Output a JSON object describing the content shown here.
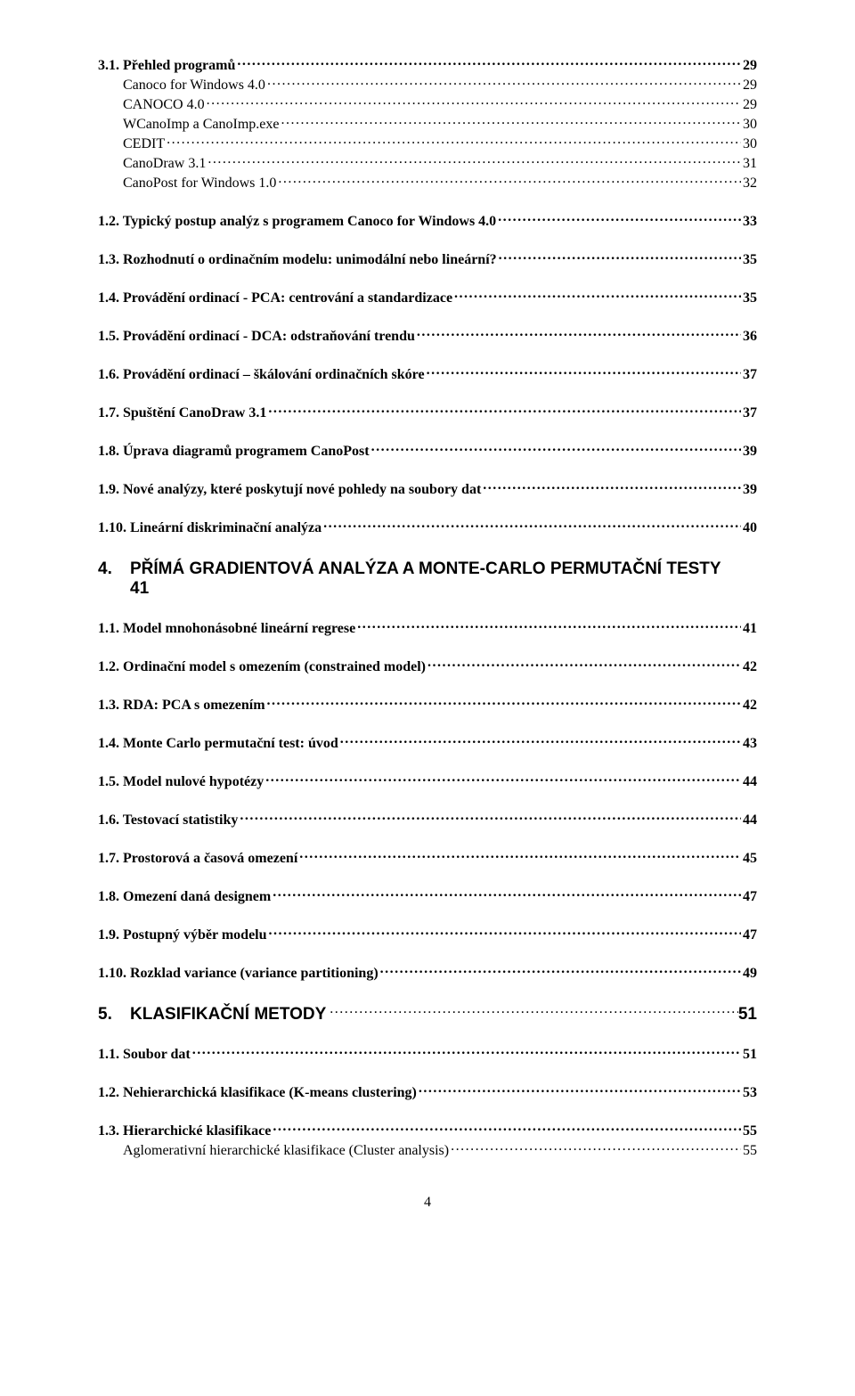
{
  "toc": {
    "items": [
      {
        "type": "lvl1",
        "label": "3.1. Přehled programů",
        "page": "29"
      },
      {
        "type": "lvl2",
        "label": "Canoco for Windows 4.0",
        "page": "29"
      },
      {
        "type": "lvl2",
        "label": "CANOCO 4.0",
        "page": "29"
      },
      {
        "type": "lvl2",
        "label": "WCanoImp a CanoImp.exe",
        "page": "30"
      },
      {
        "type": "lvl2",
        "label": "CEDIT",
        "page": "30"
      },
      {
        "type": "lvl2",
        "label": "CanoDraw 3.1",
        "page": "31"
      },
      {
        "type": "lvl2",
        "label": "CanoPost for Windows 1.0",
        "page": "32"
      },
      {
        "type": "lvl1",
        "label": "1.2. Typický postup analýz s programem Canoco for Windows 4.0",
        "page": "33"
      },
      {
        "type": "lvl1",
        "label": "1.3. Rozhodnutí o ordinačním modelu: unimodální nebo lineární?",
        "page": "35"
      },
      {
        "type": "lvl1",
        "label": "1.4. Provádění ordinací - PCA:  centrování a standardizace",
        "page": "35"
      },
      {
        "type": "lvl1",
        "label": "1.5. Provádění ordinací - DCA: odstraňování trendu",
        "page": "36"
      },
      {
        "type": "lvl1",
        "label": "1.6. Provádění ordinací – škálování ordinačních skóre",
        "page": "37"
      },
      {
        "type": "lvl1",
        "label": "1.7. Spuštění CanoDraw 3.1",
        "page": "37"
      },
      {
        "type": "lvl1",
        "label": "1.8. Úprava diagramů programem CanoPost",
        "page": "39"
      },
      {
        "type": "lvl1",
        "label": "1.9. Nové analýzy, které poskytují nové pohledy na soubory dat",
        "page": "39"
      },
      {
        "type": "lvl1",
        "label": "1.10. Lineární diskriminační analýza",
        "page": "40"
      },
      {
        "type": "section-wrap",
        "num": "4.",
        "title": "PŘÍMÁ GRADIENTOVÁ ANALÝZA A MONTE-CARLO PERMUTAČNÍ TESTY",
        "subtitle": "41",
        "page": ""
      },
      {
        "type": "lvl1",
        "label": "1.1. Model mnohonásobné lineární regrese",
        "page": "41"
      },
      {
        "type": "lvl1",
        "label": "1.2. Ordinační model s omezením (constrained model)",
        "page": "42"
      },
      {
        "type": "lvl1",
        "label": "1.3. RDA: PCA s omezením",
        "page": "42"
      },
      {
        "type": "lvl1",
        "label": "1.4. Monte Carlo permutační test: úvod",
        "page": "43"
      },
      {
        "type": "lvl1",
        "label": "1.5. Model nulové hypotézy",
        "page": "44"
      },
      {
        "type": "lvl1",
        "label": "1.6. Testovací statistiky",
        "page": "44"
      },
      {
        "type": "lvl1",
        "label": "1.7. Prostorová a časová omezení",
        "page": "45"
      },
      {
        "type": "lvl1",
        "label": "1.8. Omezení daná designem",
        "page": "47"
      },
      {
        "type": "lvl1",
        "label": "1.9. Postupný výběr modelu",
        "page": "47"
      },
      {
        "type": "lvl1",
        "label": "1.10. Rozklad variance (variance partitioning)",
        "page": "49"
      },
      {
        "type": "section",
        "num": "5.",
        "title": "KLASIFIKAČNÍ METODY",
        "page": "51"
      },
      {
        "type": "lvl1",
        "label": "1.1. Soubor dat",
        "page": "51"
      },
      {
        "type": "lvl1",
        "label": "1.2. Nehierarchická klasifikace (K-means clustering)",
        "page": "53"
      },
      {
        "type": "lvl1",
        "label": "1.3. Hierarchické klasifikace",
        "page": "55"
      },
      {
        "type": "lvl2",
        "label": "Aglomerativní hierarchické klasifikace (Cluster analysis)",
        "page": "55"
      }
    ]
  },
  "page_number": "4"
}
